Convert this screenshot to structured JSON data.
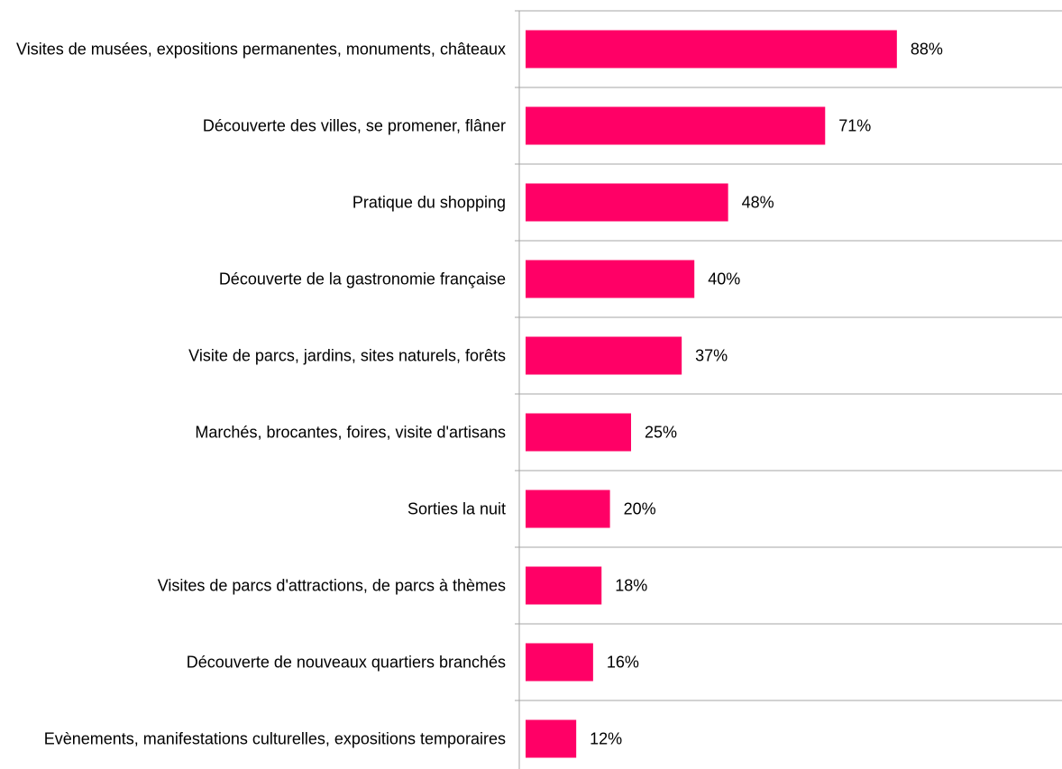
{
  "chart_data": {
    "type": "bar",
    "orientation": "horizontal",
    "categories": [
      "Visites de musées, expositions permanentes, monuments, châteaux",
      "Découverte des villes, se promener, flâner",
      "Pratique du shopping",
      "Découverte de la gastronomie française",
      "Visite de parcs, jardins, sites naturels, forêts",
      "Marchés, brocantes, foires, visite d'artisans",
      "Sorties la nuit",
      "Visites de parcs d'attractions, de parcs à thèmes",
      "Découverte de nouveaux quartiers branchés",
      "Evènements, manifestations culturelles, expositions temporaires"
    ],
    "values": [
      88,
      71,
      48,
      40,
      37,
      25,
      20,
      18,
      16,
      12
    ],
    "value_labels": [
      "88%",
      "71%",
      "48%",
      "40%",
      "37%",
      "25%",
      "20%",
      "18%",
      "16%",
      "12%"
    ],
    "color": "#ff0066",
    "xlim": [
      0,
      100
    ]
  }
}
